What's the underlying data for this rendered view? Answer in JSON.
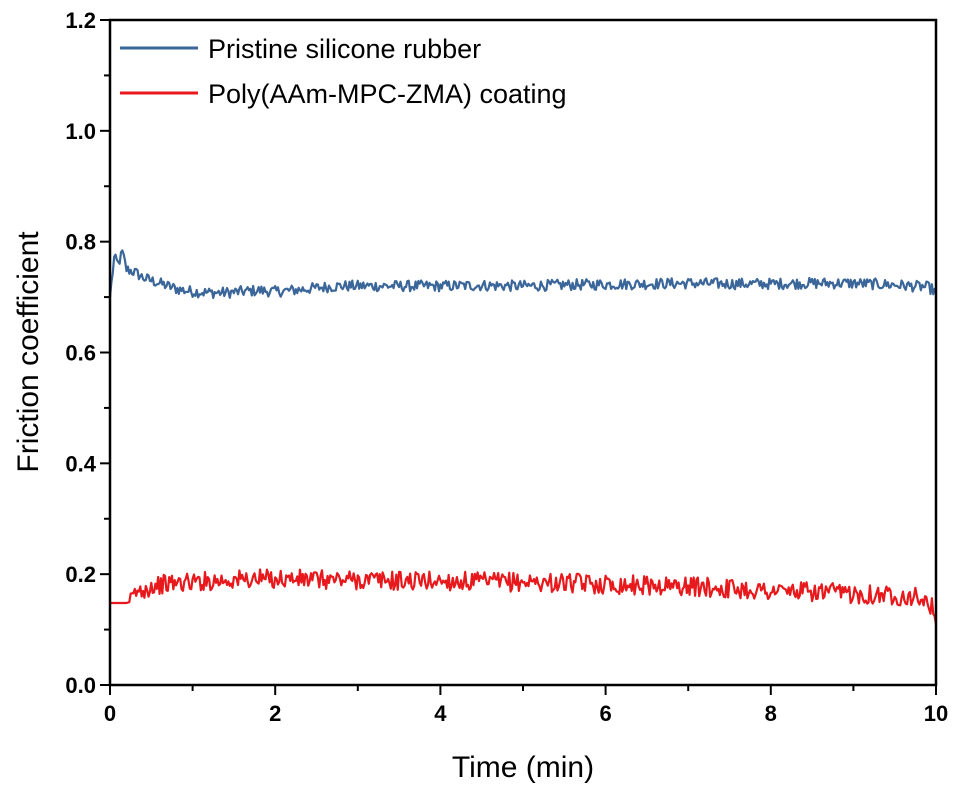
{
  "chart_data": {
    "type": "line",
    "xlabel": "Time (min)",
    "ylabel": "Friction coefficient",
    "xlim": [
      0,
      10
    ],
    "ylim": [
      0,
      1.2
    ],
    "x_ticks": [
      "0",
      "2",
      "4",
      "6",
      "8",
      "10"
    ],
    "y_ticks": [
      "0.0",
      "0.2",
      "0.4",
      "0.6",
      "0.8",
      "1.0",
      "1.2"
    ],
    "legend_position": "top-left",
    "grid": false,
    "series": [
      {
        "name": "Pristine silicone rubber",
        "color": "#3B6699",
        "x": [
          0,
          0.05,
          0.1,
          0.15,
          0.2,
          0.3,
          0.4,
          0.5,
          0.6,
          0.7,
          0.8,
          0.9,
          1.0,
          1.2,
          1.4,
          1.6,
          1.8,
          2.0,
          2.2,
          2.4,
          2.6,
          2.8,
          3.0,
          3.5,
          4.0,
          4.5,
          5.0,
          5.5,
          6.0,
          6.5,
          7.0,
          7.5,
          8.0,
          8.5,
          9.0,
          9.5,
          9.9,
          10.0
        ],
        "y": [
          0.7,
          0.77,
          0.76,
          0.78,
          0.75,
          0.745,
          0.735,
          0.73,
          0.725,
          0.72,
          0.715,
          0.712,
          0.71,
          0.708,
          0.708,
          0.71,
          0.712,
          0.71,
          0.712,
          0.715,
          0.718,
          0.72,
          0.72,
          0.72,
          0.72,
          0.721,
          0.72,
          0.722,
          0.723,
          0.724,
          0.725,
          0.724,
          0.724,
          0.725,
          0.725,
          0.722,
          0.718,
          0.71
        ]
      },
      {
        "name": "Poly(AAm-MPC-ZMA) coating",
        "color": "#E8191C",
        "x": [
          0,
          0.1,
          0.2,
          0.25,
          0.3,
          0.4,
          0.5,
          0.6,
          0.8,
          1.0,
          1.2,
          1.5,
          2.0,
          2.5,
          3.0,
          3.5,
          4.0,
          4.5,
          5.0,
          5.5,
          6.0,
          6.5,
          7.0,
          7.5,
          8.0,
          8.5,
          9.0,
          9.5,
          9.8,
          9.95,
          10.0
        ],
        "y": [
          0.148,
          0.148,
          0.148,
          0.15,
          0.165,
          0.172,
          0.178,
          0.181,
          0.184,
          0.186,
          0.188,
          0.19,
          0.192,
          0.19,
          0.19,
          0.188,
          0.188,
          0.186,
          0.186,
          0.184,
          0.182,
          0.18,
          0.178,
          0.174,
          0.17,
          0.168,
          0.165,
          0.162,
          0.158,
          0.14,
          0.11
        ]
      }
    ]
  }
}
